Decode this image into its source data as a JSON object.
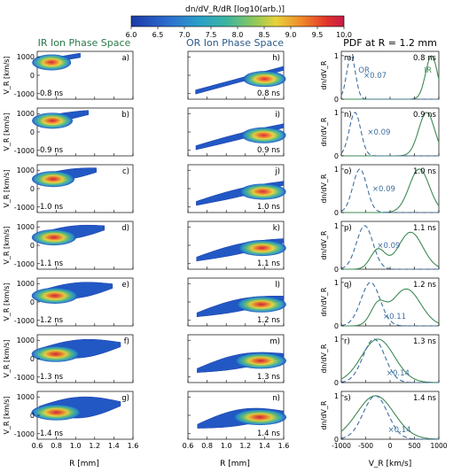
{
  "colorbar": {
    "label": "dn/dV_R/dR [log10(arb.)]",
    "ticks": [
      "6.0",
      "6.5",
      "7.0",
      "7.5",
      "8.0",
      "8.5",
      "9.0",
      "9.5",
      "10.0"
    ]
  },
  "columns": {
    "ir_title": "IR Ion Phase Space",
    "or_title": "OR Ion Phase Space",
    "pdf_title": "PDF at R = 1.2 mm"
  },
  "axes": {
    "ylabel": "V_R [km/s]",
    "xlabel_r": "R [mm]",
    "xlabel_v": "V_R [km/s]",
    "ylabel_pdf": "dn/dV_R",
    "yticks_phase": [
      "1000",
      "0",
      "-1000"
    ],
    "xticks_r": [
      "0.6",
      "0.8",
      "1.0",
      "1.2",
      "1.4",
      "1.6"
    ],
    "xticks_v": [
      "-1000",
      "-500",
      "0",
      "500",
      "1000"
    ],
    "yticks_pdf": [
      "0",
      "1"
    ]
  },
  "chart_data": [
    {
      "type": "heatmap",
      "title": "IR Ion Phase Space",
      "xlabel": "R [mm]",
      "ylabel": "V_R [km/s]",
      "xlim": [
        0.6,
        1.6
      ],
      "ylim": [
        -1300,
        1300
      ],
      "panels": [
        {
          "letter": "a)",
          "time": "0.8 ns"
        },
        {
          "letter": "b)",
          "time": "0.9 ns"
        },
        {
          "letter": "c)",
          "time": "1.0 ns"
        },
        {
          "letter": "d)",
          "time": "1.1 ns"
        },
        {
          "letter": "e)",
          "time": "1.2 ns"
        },
        {
          "letter": "f)",
          "time": "1.3 ns"
        },
        {
          "letter": "g)",
          "time": "1.4 ns"
        }
      ]
    },
    {
      "type": "heatmap",
      "title": "OR Ion Phase Space",
      "xlabel": "R [mm]",
      "xlim": [
        0.6,
        1.6
      ],
      "ylim": [
        -1300,
        1300
      ],
      "panels": [
        {
          "letter": "h)",
          "time": "0.8 ns"
        },
        {
          "letter": "i)",
          "time": "0.9 ns"
        },
        {
          "letter": "j)",
          "time": "1.0 ns"
        },
        {
          "letter": "k)",
          "time": "1.1 ns"
        },
        {
          "letter": "l)",
          "time": "1.2 ns"
        },
        {
          "letter": "m)",
          "time": "1.3 ns"
        },
        {
          "letter": "n)",
          "time": "1.4 ns"
        }
      ]
    },
    {
      "type": "line",
      "title": "PDF at R = 1.2 mm",
      "xlabel": "V_R [km/s]",
      "ylabel": "dn/dV_R",
      "xlim": [
        -1000,
        1000
      ],
      "ylim": [
        0,
        1.1
      ],
      "series_labels": [
        "OR",
        "IR"
      ],
      "series_colors": {
        "OR": "#3f6fa0",
        "IR": "#3e8a55"
      },
      "panels": [
        {
          "letter": "m)",
          "time": "0.8 ns",
          "scale": "×0.07",
          "or_peak": -800,
          "ir_peak": 850
        },
        {
          "letter": "n)",
          "time": "0.9 ns",
          "scale": "×0.09",
          "or_peak": -720,
          "ir_peak": 750
        },
        {
          "letter": "o)",
          "time": "1.0 ns",
          "scale": "×0.09",
          "or_peak": -620,
          "ir_peak": 600
        },
        {
          "letter": "p)",
          "time": "1.1 ns",
          "scale": "×0.09",
          "or_peak": -520,
          "ir_peak": 420
        },
        {
          "letter": "q)",
          "time": "1.2 ns",
          "scale": "×0.11",
          "or_peak": -400,
          "ir_peak": 330
        },
        {
          "letter": "r)",
          "time": "1.3 ns",
          "scale": "×0.14",
          "or_peak": -330,
          "ir_peak": -250
        },
        {
          "letter": "s)",
          "time": "1.4 ns",
          "scale": "×0.14",
          "or_peak": -300,
          "ir_peak": -300
        }
      ]
    }
  ]
}
